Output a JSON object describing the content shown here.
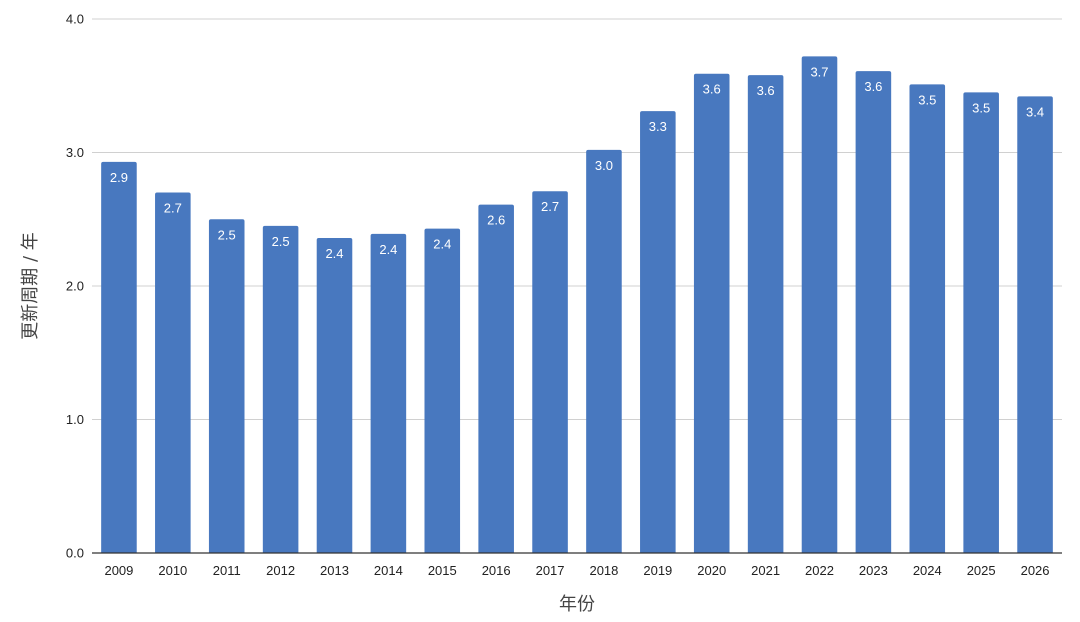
{
  "chart_data": {
    "type": "bar",
    "categories": [
      "2009",
      "2010",
      "2011",
      "2012",
      "2013",
      "2014",
      "2015",
      "2016",
      "2017",
      "2018",
      "2019",
      "2020",
      "2021",
      "2022",
      "2023",
      "2024",
      "2025",
      "2026"
    ],
    "values": [
      2.93,
      2.7,
      2.5,
      2.45,
      2.36,
      2.39,
      2.43,
      2.61,
      2.71,
      3.02,
      3.31,
      3.59,
      3.58,
      3.72,
      3.61,
      3.51,
      3.45,
      3.42
    ],
    "value_labels": [
      "2.9",
      "2.7",
      "2.5",
      "2.5",
      "2.4",
      "2.4",
      "2.4",
      "2.6",
      "2.7",
      "3.0",
      "3.3",
      "3.6",
      "3.6",
      "3.7",
      "3.6",
      "3.5",
      "3.5",
      "3.4"
    ],
    "xlabel": "年份",
    "ylabel": "更新周期 / 年",
    "ylim": [
      0,
      4
    ],
    "yticks": [
      "0.0",
      "1.0",
      "2.0",
      "3.0",
      "4.0"
    ],
    "grid": true,
    "bar_color": "#4878bf"
  }
}
